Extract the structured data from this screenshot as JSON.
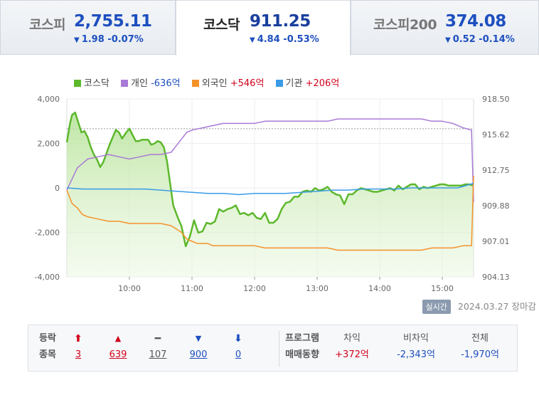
{
  "tabs": [
    {
      "name": "코스피",
      "value": "2,755.11",
      "arrow": "▼",
      "change": "1.98 -0.07%",
      "active": false
    },
    {
      "name": "코스닥",
      "value": "911.25",
      "arrow": "▼",
      "change": "4.84 -0.53%",
      "active": true
    },
    {
      "name": "코스피200",
      "value": "374.08",
      "arrow": "▼",
      "change": "0.52 -0.14%",
      "active": false
    }
  ],
  "legend": [
    {
      "label": "코스닥",
      "value": "",
      "color": "#5cb82c"
    },
    {
      "label": "개인",
      "value": "-636억",
      "color": "#a97ad6"
    },
    {
      "label": "외국인",
      "value": "+546억",
      "color": "#f5922a"
    },
    {
      "label": "기관",
      "value": "+206억",
      "color": "#3a9be6"
    }
  ],
  "status": {
    "badge": "실시간",
    "date": "2024.03.27",
    "text": "장마감"
  },
  "summary": {
    "header_line1": "등락",
    "header_line2": "종목",
    "counts": [
      {
        "symbol": "⬆",
        "value": "3",
        "color": "#d0021b"
      },
      {
        "symbol": "▲",
        "value": "639",
        "color": "#d0021b"
      },
      {
        "symbol": "━",
        "value": "107",
        "color": "#555555"
      },
      {
        "symbol": "▼",
        "value": "900",
        "color": "#1d4fbf"
      },
      {
        "symbol": "⬇",
        "value": "0",
        "color": "#1d4fbf"
      }
    ],
    "program_line1": "프로그램",
    "program_line2": "매매동향",
    "stats": [
      {
        "label": "차익",
        "value": "+372억",
        "color": "#d0021b"
      },
      {
        "label": "비차익",
        "value": "-2,343억",
        "color": "#1d4fbf"
      },
      {
        "label": "전체",
        "value": "-1,970억",
        "color": "#1d4fbf"
      }
    ]
  },
  "chart_data": {
    "type": "line",
    "x_ticks": [
      "10:00",
      "11:00",
      "12:00",
      "13:00",
      "14:00",
      "15:00"
    ],
    "x_tick_minutes": [
      60,
      120,
      180,
      240,
      300,
      360
    ],
    "x_range_minutes": [
      0,
      390
    ],
    "y_left_ticks": [
      "4,000",
      "2,000",
      "0",
      "-2,000",
      "-4,000"
    ],
    "y_left_range": [
      -4000,
      4000
    ],
    "y_right_ticks": [
      "918.50",
      "915.62",
      "912.75",
      "909.88",
      "907.01",
      "904.13"
    ],
    "y_right_range": [
      904.13,
      918.5
    ],
    "reference_line": {
      "axis": "right",
      "value": 916.09,
      "style": "dashed"
    },
    "series": [
      {
        "name": "코스닥",
        "axis": "right",
        "color": "#5cb82c",
        "fill": true,
        "x": [
          0,
          3,
          5,
          8,
          11,
          14,
          17,
          20,
          23,
          26,
          29,
          32,
          35,
          38,
          41,
          44,
          47,
          50,
          53,
          57,
          60,
          63,
          66,
          69,
          72,
          75,
          78,
          81,
          84,
          87,
          90,
          93,
          96,
          99,
          102,
          106,
          110,
          114,
          118,
          122,
          126,
          130,
          134,
          138,
          142,
          146,
          150,
          154,
          158,
          162,
          166,
          170,
          174,
          178,
          182,
          186,
          190,
          194,
          198,
          202,
          206,
          210,
          214,
          218,
          222,
          226,
          230,
          234,
          238,
          242,
          246,
          250,
          254,
          258,
          262,
          266,
          270,
          274,
          278,
          282,
          286,
          290,
          294,
          298,
          302,
          306,
          310,
          314,
          318,
          322,
          326,
          330,
          334,
          338,
          342,
          346,
          350,
          354,
          358,
          362,
          366,
          370,
          374,
          378,
          382,
          386,
          390
        ],
        "y": [
          915.0,
          916.5,
          917.2,
          917.4,
          916.6,
          915.8,
          915.9,
          915.4,
          914.6,
          914.0,
          913.6,
          913.0,
          913.4,
          914.1,
          914.8,
          915.4,
          916.0,
          915.8,
          915.3,
          915.8,
          916.1,
          915.6,
          915.1,
          915.1,
          915.2,
          915.2,
          915.2,
          914.8,
          914.9,
          915.1,
          915.0,
          914.6,
          913.5,
          911.7,
          909.9,
          909.0,
          908.2,
          906.6,
          907.4,
          908.7,
          907.7,
          907.8,
          908.5,
          908.4,
          908.6,
          909.6,
          909.4,
          909.6,
          909.7,
          909.9,
          909.2,
          909.3,
          909.1,
          909.3,
          908.9,
          908.8,
          909.3,
          908.5,
          908.5,
          908.8,
          909.6,
          910.1,
          910.2,
          910.6,
          910.6,
          911.0,
          911.1,
          911.0,
          911.3,
          911.1,
          911.2,
          911.4,
          911.0,
          910.8,
          910.7,
          910.0,
          910.8,
          910.8,
          911.1,
          911.3,
          911.2,
          911.1,
          911.0,
          911.0,
          911.1,
          911.2,
          911.3,
          911.1,
          911.5,
          911.2,
          911.4,
          911.6,
          911.6,
          911.2,
          911.4,
          911.3,
          911.4,
          911.5,
          911.6,
          911.6,
          911.5,
          911.5,
          911.5,
          911.5,
          911.6,
          911.6,
          911.5
        ]
      },
      {
        "name": "개인",
        "axis": "left",
        "color": "#a97ad6",
        "x": [
          0,
          10,
          20,
          30,
          40,
          50,
          60,
          70,
          80,
          90,
          100,
          110,
          115,
          120,
          130,
          140,
          150,
          160,
          170,
          180,
          190,
          200,
          210,
          220,
          230,
          240,
          250,
          260,
          270,
          280,
          290,
          300,
          310,
          320,
          330,
          340,
          350,
          360,
          370,
          380,
          388,
          390
        ],
        "y": [
          -100,
          900,
          1300,
          1400,
          1500,
          1400,
          1300,
          1400,
          1500,
          1500,
          1600,
          2200,
          2500,
          2600,
          2700,
          2800,
          2900,
          2900,
          2900,
          2900,
          3000,
          3000,
          3000,
          3000,
          3000,
          3000,
          3000,
          3100,
          3100,
          3100,
          3100,
          3100,
          3100,
          3100,
          3100,
          3100,
          3000,
          3000,
          2900,
          2700,
          2600,
          -636
        ]
      },
      {
        "name": "외국인",
        "axis": "left",
        "color": "#f5922a",
        "x": [
          0,
          5,
          10,
          15,
          20,
          30,
          40,
          50,
          60,
          70,
          80,
          90,
          100,
          110,
          115,
          120,
          125,
          130,
          135,
          140,
          150,
          160,
          170,
          180,
          190,
          200,
          210,
          220,
          230,
          240,
          250,
          260,
          270,
          280,
          290,
          300,
          310,
          320,
          330,
          340,
          350,
          360,
          370,
          380,
          388,
          390
        ],
        "y": [
          -100,
          -700,
          -900,
          -1200,
          -1300,
          -1400,
          -1500,
          -1500,
          -1600,
          -1600,
          -1600,
          -1600,
          -1700,
          -2000,
          -2300,
          -2400,
          -2500,
          -2500,
          -2500,
          -2600,
          -2600,
          -2600,
          -2600,
          -2600,
          -2700,
          -2700,
          -2700,
          -2700,
          -2700,
          -2700,
          -2700,
          -2800,
          -2800,
          -2800,
          -2800,
          -2800,
          -2800,
          -2800,
          -2800,
          -2800,
          -2700,
          -2700,
          -2700,
          -2600,
          -2600,
          546
        ]
      },
      {
        "name": "기관",
        "axis": "left",
        "color": "#3a9be6",
        "x": [
          0,
          15,
          30,
          45,
          60,
          75,
          90,
          105,
          120,
          135,
          150,
          165,
          180,
          195,
          210,
          225,
          240,
          255,
          270,
          285,
          300,
          315,
          330,
          345,
          360,
          375,
          390
        ],
        "y": [
          0,
          -50,
          -50,
          -50,
          -50,
          -50,
          -100,
          -150,
          -200,
          -250,
          -250,
          -300,
          -250,
          -250,
          -250,
          -200,
          -150,
          -100,
          -100,
          -50,
          -50,
          -50,
          0,
          0,
          0,
          0,
          206
        ]
      }
    ]
  }
}
